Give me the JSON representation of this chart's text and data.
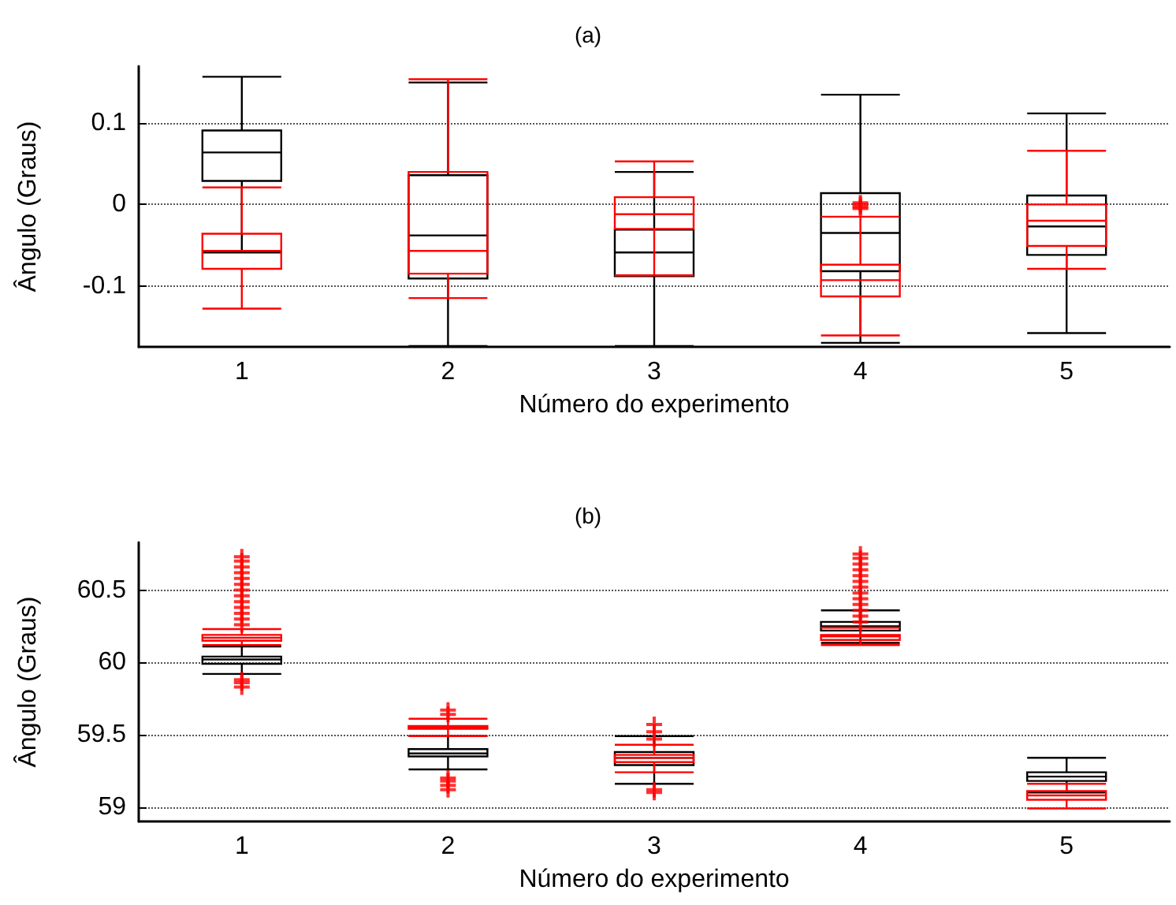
{
  "chart_data": [
    {
      "type": "box",
      "title": "(a)",
      "xlabel": "Número do experimento",
      "ylabel": "Ângulo (Graus)",
      "categories": [
        "1",
        "2",
        "3",
        "4",
        "5"
      ],
      "ylim": [
        -0.175,
        0.17
      ],
      "yticks": [
        -0.1,
        0,
        0.1
      ],
      "grid": "y",
      "series": [
        {
          "color": "#000000",
          "boxes": [
            {
              "low": -0.059,
              "q1": 0.029,
              "median": 0.064,
              "q3": 0.091,
              "high": 0.157
            },
            {
              "low": -0.174,
              "q1": -0.091,
              "median": -0.038,
              "q3": 0.036,
              "high": 0.15
            },
            {
              "low": -0.174,
              "q1": -0.088,
              "median": -0.059,
              "q3": -0.031,
              "high": 0.04
            },
            {
              "low": -0.17,
              "q1": -0.082,
              "median": -0.035,
              "q3": 0.014,
              "high": 0.135
            },
            {
              "low": -0.158,
              "q1": -0.062,
              "median": -0.027,
              "q3": 0.011,
              "high": 0.112
            }
          ]
        },
        {
          "color": "#ff0000",
          "boxes": [
            {
              "low": -0.128,
              "q1": -0.079,
              "median": -0.057,
              "q3": -0.036,
              "high": 0.021
            },
            {
              "low": -0.115,
              "q1": -0.085,
              "median": -0.057,
              "q3": 0.04,
              "high": 0.154
            },
            {
              "low": -0.087,
              "q1": -0.03,
              "median": -0.012,
              "q3": 0.009,
              "high": 0.053
            },
            {
              "low": -0.161,
              "q1": -0.113,
              "median": -0.093,
              "q3": -0.074,
              "high": -0.015,
              "outliers": [
                -0.005,
                -0.003,
                0,
                0.002
              ]
            },
            {
              "low": -0.079,
              "q1": -0.051,
              "median": -0.02,
              "q3": 0,
              "high": 0.066
            }
          ]
        }
      ]
    },
    {
      "type": "box",
      "title": "(b)",
      "xlabel": "Número do experimento",
      "ylabel": "Ângulo (Graus)",
      "categories": [
        "1",
        "2",
        "3",
        "4",
        "5"
      ],
      "ylim": [
        58.9,
        60.83
      ],
      "yticks": [
        59,
        59.5,
        60,
        60.5
      ],
      "grid": "y",
      "series": [
        {
          "color": "#000000",
          "boxes": [
            {
              "low": 59.92,
              "q1": 59.99,
              "median": 60.02,
              "q3": 60.04,
              "high": 60.11
            },
            {
              "low": 59.26,
              "q1": 59.35,
              "median": 59.37,
              "q3": 59.4,
              "high": 59.49
            },
            {
              "low": 59.16,
              "q1": 59.29,
              "median": 59.34,
              "q3": 59.38,
              "high": 59.49
            },
            {
              "low": 60.135,
              "q1": 60.22,
              "median": 60.25,
              "q3": 60.28,
              "high": 60.36
            },
            {
              "low": 59.1,
              "q1": 59.18,
              "median": 59.21,
              "q3": 59.24,
              "high": 59.34
            }
          ]
        },
        {
          "color": "#ff0000",
          "boxes": [
            {
              "low": 60.12,
              "q1": 60.15,
              "median": 60.17,
              "q3": 60.19,
              "high": 60.23,
              "outliers": [
                59.83,
                59.86,
                59.88,
                60.26,
                60.3,
                60.34,
                60.38,
                60.42,
                60.46,
                60.5,
                60.54,
                60.58,
                60.62,
                60.66,
                60.7,
                60.73
              ]
            },
            {
              "low": 59.49,
              "q1": 59.54,
              "median": 59.55,
              "q3": 59.56,
              "high": 59.61,
              "outliers": [
                59.12,
                59.15,
                59.18,
                59.2,
                59.64,
                59.67
              ]
            },
            {
              "low": 59.24,
              "q1": 59.31,
              "median": 59.34,
              "q3": 59.36,
              "high": 59.43,
              "outliers": [
                59.1,
                59.12,
                59.47,
                59.52,
                59.57
              ]
            },
            {
              "low": 60.12,
              "q1": 60.155,
              "median": 60.18,
              "q3": 60.19,
              "high": 60.24,
              "outliers": [
                60.28,
                60.32,
                60.36,
                60.4,
                60.44,
                60.48,
                60.52,
                60.56,
                60.6,
                60.64,
                60.68,
                60.72,
                60.75
              ]
            },
            {
              "low": 58.99,
              "q1": 59.05,
              "median": 59.08,
              "q3": 59.11,
              "high": 59.16
            }
          ]
        }
      ]
    }
  ]
}
